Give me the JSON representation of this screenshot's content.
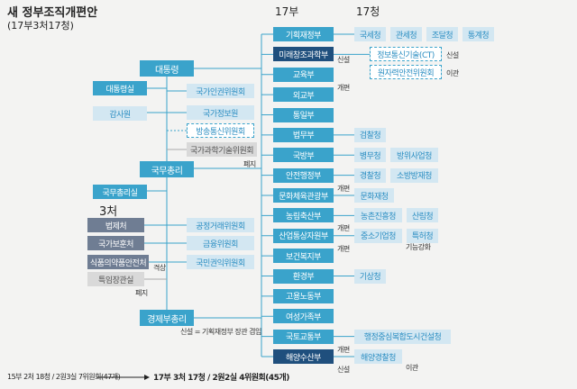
{
  "header": {
    "title": "새 정부조직개편안",
    "subtitle": "(17부3처17청)"
  },
  "column_labels": {
    "ministries": "17부",
    "agencies": "17청",
    "offices": "3처"
  },
  "executive": [
    {
      "label": "대통령"
    },
    {
      "label": "대통령실"
    },
    {
      "label": "국가인권위원회"
    },
    {
      "label": "감사원"
    },
    {
      "label": "국가정보원"
    },
    {
      "label": "방송통신위원회"
    },
    {
      "label": "국가과학기술위원회",
      "note": "폐지"
    },
    {
      "label": "국무총리"
    },
    {
      "label": "국무총리실"
    },
    {
      "label": "법제처"
    },
    {
      "label": "국가보훈처"
    },
    {
      "label": "식품의약품안전처",
      "note": "격상"
    },
    {
      "label": "특임장관실",
      "note": "폐지"
    },
    {
      "label": "공정거래위원회"
    },
    {
      "label": "금융위원회"
    },
    {
      "label": "국민권익위원회"
    },
    {
      "label": "경제부총리",
      "note": "신설 = 기획재정부 장관 겸임"
    }
  ],
  "ministries": [
    {
      "label": "기획재정부",
      "agencies": [
        {
          "label": "국세청"
        },
        {
          "label": "관세청"
        },
        {
          "label": "조달청"
        },
        {
          "label": "통계청"
        }
      ]
    },
    {
      "label": "미래창조과학부",
      "note": "신설",
      "agencies": [
        {
          "label": "정보통신기술(CT)",
          "note": "신설"
        },
        {
          "label": "원자력안전위원회",
          "note": "이관"
        }
      ]
    },
    {
      "label": "교육부",
      "note": "개편",
      "agencies": []
    },
    {
      "label": "외교부",
      "agencies": []
    },
    {
      "label": "통일부",
      "agencies": []
    },
    {
      "label": "법무부",
      "agencies": [
        {
          "label": "검찰청"
        }
      ]
    },
    {
      "label": "국방부",
      "agencies": [
        {
          "label": "병무청"
        },
        {
          "label": "방위사업청"
        }
      ]
    },
    {
      "label": "안전행정부",
      "note": "개편",
      "agencies": [
        {
          "label": "경찰청"
        },
        {
          "label": "소방방재청"
        }
      ]
    },
    {
      "label": "문화체육관광부",
      "agencies": [
        {
          "label": "문화재청"
        }
      ]
    },
    {
      "label": "농림축산부",
      "note": "개편",
      "agencies": [
        {
          "label": "농촌진흥청"
        },
        {
          "label": "산림청"
        }
      ]
    },
    {
      "label": "산업통상자원부",
      "note": "개편",
      "agencies": [
        {
          "label": "중소기업청",
          "note": "기능강화"
        },
        {
          "label": "특허청"
        }
      ]
    },
    {
      "label": "보건복지부",
      "agencies": []
    },
    {
      "label": "환경부",
      "agencies": [
        {
          "label": "기상청"
        }
      ]
    },
    {
      "label": "고용노동부",
      "agencies": []
    },
    {
      "label": "여성가족부",
      "agencies": []
    },
    {
      "label": "국토교통부",
      "note": "개편",
      "agencies": [
        {
          "label": "행정중심복합도시건설청"
        }
      ]
    },
    {
      "label": "해양수산부",
      "note": "신설",
      "agencies": [
        {
          "label": "해양경찰청",
          "note": "이관"
        }
      ]
    }
  ],
  "footer": {
    "before": "15부 2처 18청 / 2원3실 7위원회(47개)",
    "after": "17부 3처 17청 / 2원2실 4위원회(45개)"
  }
}
